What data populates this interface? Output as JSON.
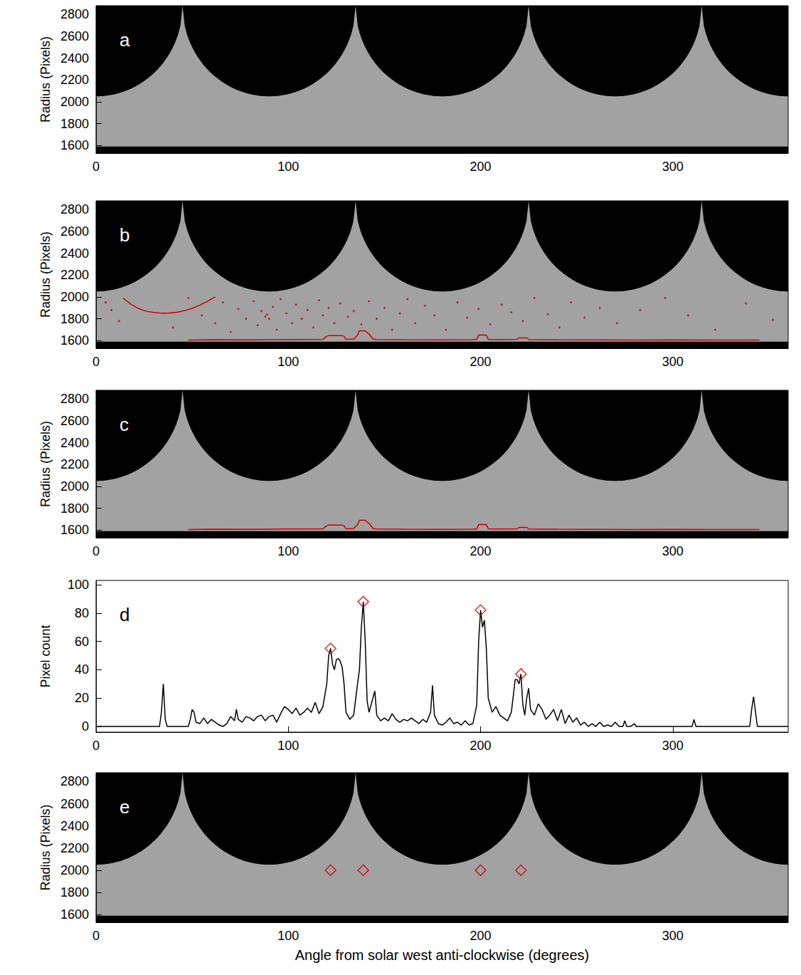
{
  "chart_data": [
    {
      "type": "image",
      "label": "a",
      "ylabel": "Radius (Pixels)",
      "xlim": [
        0,
        360
      ],
      "ylim": [
        1530,
        2880
      ],
      "xticks": [
        0,
        100,
        200,
        300
      ],
      "yticks": [
        1600,
        1800,
        2000,
        2200,
        2400,
        2600,
        2800
      ],
      "grid": false,
      "color": "#a2a2a2",
      "occulter": {
        "centers": [
          0,
          90,
          180,
          270,
          360
        ],
        "half_width": 45,
        "floor": 2050
      },
      "band": [
        1530,
        1590
      ]
    },
    {
      "type": "image",
      "label": "b",
      "ylabel": "Radius (Pixels)",
      "xlim": [
        0,
        360
      ],
      "ylim": [
        1530,
        2880
      ],
      "xticks": [
        0,
        100,
        200,
        300
      ],
      "yticks": [
        1600,
        1800,
        2000,
        2200,
        2400,
        2600,
        2800
      ],
      "grid": false,
      "color": "#a2a2a2",
      "occulter": {
        "centers": [
          0,
          90,
          180,
          270,
          360
        ],
        "half_width": 45,
        "floor": 2050
      },
      "band": [
        1530,
        1590
      ],
      "series": [
        {
          "type": "scatter",
          "marker": "dot",
          "color": "#cc0000",
          "x": [
            5,
            8,
            12,
            40,
            48,
            55,
            62,
            66,
            70,
            74,
            78,
            82,
            84,
            86,
            88,
            89,
            90,
            92,
            94,
            96,
            99,
            102,
            104,
            107,
            110,
            113,
            116,
            118,
            121,
            124,
            127,
            131,
            134,
            138,
            142,
            146,
            150,
            154,
            158,
            162,
            166,
            171,
            176,
            182,
            188,
            193,
            199,
            205,
            211,
            216,
            222,
            228,
            235,
            241,
            247,
            254,
            262,
            271,
            283,
            296,
            308,
            322,
            338,
            352
          ],
          "values": [
            1950,
            1880,
            1780,
            1720,
            1990,
            1830,
            1760,
            1950,
            1680,
            1890,
            1800,
            1960,
            1740,
            1870,
            1820,
            1840,
            1800,
            1910,
            1700,
            1980,
            1850,
            1760,
            1930,
            1800,
            1880,
            1720,
            1970,
            1830,
            1900,
            1760,
            1940,
            1820,
            1870,
            1750,
            1960,
            1800,
            1900,
            1700,
            1850,
            1980,
            1760,
            1920,
            1830,
            1700,
            1950,
            1810,
            1890,
            1750,
            1930,
            1860,
            1780,
            1990,
            1840,
            1720,
            1950,
            1810,
            1900,
            1760,
            1880,
            1990,
            1830,
            1700,
            1940,
            1790
          ]
        },
        {
          "type": "line",
          "color": "#cc0000",
          "x": [
            14,
            18,
            22,
            26,
            30,
            34,
            38,
            42,
            46,
            50,
            54,
            58,
            62
          ],
          "values": [
            1990,
            1935,
            1895,
            1870,
            1857,
            1852,
            1853,
            1860,
            1875,
            1895,
            1925,
            1960,
            2000
          ]
        },
        {
          "type": "line",
          "color": "#cc0000",
          "x": [
            48,
            60,
            80,
            100,
            118,
            120,
            121,
            128,
            129,
            130,
            134,
            136,
            137,
            140,
            142,
            144,
            146,
            160,
            180,
            196,
            198,
            199,
            203,
            204,
            210,
            219,
            220,
            224,
            225,
            240,
            260,
            280,
            300,
            320,
            345
          ],
          "values": [
            1605,
            1608,
            1606,
            1610,
            1612,
            1640,
            1645,
            1645,
            1640,
            1612,
            1614,
            1650,
            1690,
            1690,
            1660,
            1615,
            1610,
            1608,
            1606,
            1608,
            1612,
            1650,
            1650,
            1612,
            1610,
            1612,
            1625,
            1625,
            1610,
            1608,
            1606,
            1605,
            1606,
            1605,
            1605
          ]
        }
      ]
    },
    {
      "type": "image",
      "label": "c",
      "ylabel": "Radius (Pixels)",
      "xlim": [
        0,
        360
      ],
      "ylim": [
        1530,
        2880
      ],
      "xticks": [
        0,
        100,
        200,
        300
      ],
      "yticks": [
        1600,
        1800,
        2000,
        2200,
        2400,
        2600,
        2800
      ],
      "grid": false,
      "color": "#a2a2a2",
      "occulter": {
        "centers": [
          0,
          90,
          180,
          270,
          360
        ],
        "half_width": 45,
        "floor": 2050
      },
      "band": [
        1530,
        1590
      ],
      "series": [
        {
          "type": "line",
          "color": "#cc0000",
          "x": [
            48,
            60,
            80,
            100,
            118,
            120,
            121,
            128,
            129,
            130,
            134,
            136,
            137,
            140,
            142,
            144,
            146,
            160,
            180,
            196,
            198,
            199,
            203,
            204,
            210,
            219,
            220,
            224,
            225,
            240,
            260,
            280,
            300,
            320,
            345
          ],
          "values": [
            1605,
            1608,
            1606,
            1610,
            1612,
            1640,
            1645,
            1645,
            1640,
            1612,
            1614,
            1650,
            1690,
            1690,
            1660,
            1615,
            1610,
            1608,
            1606,
            1608,
            1612,
            1650,
            1650,
            1612,
            1610,
            1612,
            1625,
            1625,
            1610,
            1608,
            1606,
            1605,
            1606,
            1605,
            1605
          ]
        }
      ]
    },
    {
      "type": "line",
      "label": "d",
      "ylabel": "Pixel count",
      "xlim": [
        0,
        360
      ],
      "ylim": [
        -4,
        103
      ],
      "xticks": [
        0,
        100,
        200,
        300
      ],
      "yticks": [
        0,
        20,
        40,
        60,
        80,
        100
      ],
      "grid": false,
      "series": [
        {
          "type": "line",
          "color": "#000000",
          "x": [
            0,
            33,
            34,
            35,
            36,
            37,
            48,
            49,
            50,
            51,
            52,
            54,
            56,
            58,
            60,
            62,
            64,
            66,
            68,
            70,
            72,
            73,
            74,
            76,
            78,
            80,
            82,
            84,
            86,
            88,
            90,
            92,
            94,
            96,
            98,
            100,
            102,
            104,
            106,
            108,
            110,
            112,
            114,
            116,
            118,
            120,
            121,
            122,
            123,
            124,
            125,
            126,
            127,
            128,
            129,
            130,
            132,
            134,
            136,
            137,
            138,
            139,
            140,
            141,
            142,
            144,
            145,
            146,
            148,
            150,
            152,
            154,
            156,
            158,
            160,
            162,
            164,
            166,
            168,
            170,
            172,
            174,
            175,
            176,
            178,
            180,
            182,
            184,
            186,
            188,
            190,
            192,
            194,
            196,
            198,
            199,
            200,
            201,
            202,
            203,
            204,
            206,
            208,
            210,
            212,
            214,
            216,
            218,
            219,
            220,
            221,
            222,
            223,
            224,
            225,
            226,
            228,
            230,
            232,
            234,
            236,
            238,
            240,
            242,
            244,
            246,
            248,
            250,
            252,
            254,
            256,
            258,
            260,
            262,
            264,
            266,
            268,
            270,
            272,
            274,
            275,
            276,
            278,
            280,
            281,
            282,
            310,
            311,
            312,
            340,
            341,
            342,
            343,
            344,
            360
          ],
          "values": [
            0,
            0,
            10,
            30,
            5,
            0,
            0,
            5,
            12,
            10,
            3,
            2,
            6,
            2,
            5,
            3,
            1,
            0,
            2,
            7,
            4,
            12,
            5,
            3,
            7,
            6,
            4,
            7,
            8,
            4,
            7,
            8,
            3,
            9,
            14,
            12,
            9,
            13,
            8,
            10,
            13,
            10,
            17,
            9,
            14,
            30,
            50,
            55,
            44,
            40,
            47,
            48,
            46,
            42,
            30,
            10,
            5,
            8,
            30,
            40,
            70,
            88,
            60,
            18,
            10,
            20,
            25,
            8,
            4,
            6,
            4,
            9,
            5,
            3,
            5,
            4,
            6,
            4,
            2,
            5,
            3,
            10,
            29,
            8,
            2,
            1,
            3,
            6,
            2,
            3,
            1,
            4,
            1,
            2,
            15,
            60,
            82,
            70,
            75,
            55,
            20,
            10,
            14,
            8,
            6,
            4,
            10,
            33,
            33,
            30,
            37,
            15,
            8,
            20,
            27,
            12,
            8,
            16,
            12,
            5,
            8,
            12,
            4,
            12,
            2,
            8,
            3,
            6,
            1,
            3,
            0,
            2,
            0,
            3,
            0,
            1,
            0,
            3,
            0,
            0,
            4,
            0,
            0,
            2,
            0,
            0,
            0,
            5,
            0,
            0,
            12,
            21,
            10,
            0,
            0
          ]
        },
        {
          "type": "scatter",
          "marker": "diamond",
          "color": "#cc0000",
          "x": [
            122,
            139,
            200,
            221
          ],
          "values": [
            55,
            88,
            82,
            37
          ]
        }
      ]
    },
    {
      "type": "image",
      "label": "e",
      "ylabel": "Radius (Pixels)",
      "xlabel": "Angle from solar west anti-clockwise (degrees)",
      "xlim": [
        0,
        360
      ],
      "ylim": [
        1530,
        2880
      ],
      "xticks": [
        0,
        100,
        200,
        300
      ],
      "yticks": [
        1600,
        1800,
        2000,
        2200,
        2400,
        2600,
        2800
      ],
      "grid": false,
      "color": "#a2a2a2",
      "occulter": {
        "centers": [
          0,
          90,
          180,
          270,
          360
        ],
        "half_width": 45,
        "floor": 2050
      },
      "band": [
        1530,
        1590
      ],
      "series": [
        {
          "type": "scatter",
          "marker": "diamond",
          "color": "#cc0000",
          "x": [
            122,
            139,
            200,
            221
          ],
          "values": [
            2000,
            2000,
            2000,
            2000
          ]
        }
      ]
    }
  ]
}
